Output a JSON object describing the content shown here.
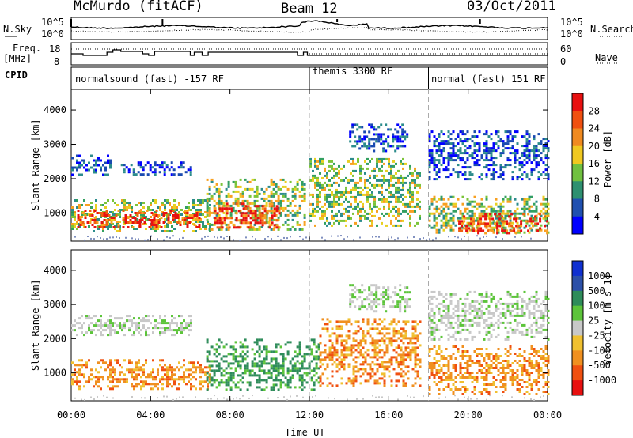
{
  "header": {
    "station": "McMurdo (fitACF)",
    "beam": "Beam 12",
    "date": "03/Oct/2011"
  },
  "side_labels": {
    "nsky": "N.Sky",
    "nsearch": "N.Search",
    "freq": "Freq.",
    "freq_unit": "[MHz]",
    "nave": "Nave",
    "cpid": "CPID",
    "nsky_top": "10^5",
    "nsky_bot": "10^0",
    "freq_top": "18",
    "freq_bot": "8",
    "nave_top": "60",
    "nave_bot": "0",
    "nsearch_top": "10^5",
    "nsearch_bot": "10^0"
  },
  "cpid_segments": [
    {
      "label": "normalsound (fast) -157 RF",
      "start_hour": 0
    },
    {
      "label": "themis 3300 RF",
      "start_hour": 12
    },
    {
      "label": "normal (fast) 151 RF",
      "start_hour": 18
    }
  ],
  "colors": {
    "power_scale": [
      "#0000ff",
      "#1a4ab0",
      "#2c8c8c",
      "#33a060",
      "#7cc43a",
      "#e8d020",
      "#f8a020",
      "#f06010",
      "#e81010"
    ],
    "velocity_scale": [
      "#1030d0",
      "#2c50a8",
      "#2e8c5a",
      "#5cc43a",
      "#c8c8c8",
      "#f0c030",
      "#f09020",
      "#f05010",
      "#e81010"
    ]
  },
  "chart_data": [
    {
      "type": "heatmap",
      "title": "Power",
      "xlabel": "Time UT",
      "ylabel": "Slant Range [km]",
      "x_ticks": [
        "00:00",
        "04:00",
        "08:00",
        "12:00",
        "16:00",
        "20:00",
        "00:00"
      ],
      "y_ticks": [
        "1000",
        "2000",
        "3000",
        "4000"
      ],
      "xlim_hours": [
        0,
        24
      ],
      "ylim_km": [
        180,
        4600
      ],
      "colorbar_label": "Power [dB]",
      "colorbar_ticks": [
        "4",
        "8",
        "12",
        "16",
        "20",
        "24",
        "28"
      ],
      "regions": [
        {
          "t0": 0.0,
          "t1": 7.0,
          "r0": 500,
          "r1": 1400,
          "level": "mid"
        },
        {
          "t0": 0.3,
          "t1": 6.5,
          "r0": 600,
          "r1": 1100,
          "level": "high"
        },
        {
          "t0": 6.8,
          "t1": 11.8,
          "r0": 500,
          "r1": 2000,
          "level": "mid"
        },
        {
          "t0": 7.2,
          "t1": 10.5,
          "r0": 550,
          "r1": 1300,
          "level": "high"
        },
        {
          "t0": 12.0,
          "t1": 17.6,
          "r0": 600,
          "r1": 2600,
          "level": "mid"
        },
        {
          "t0": 18.0,
          "t1": 24.0,
          "r0": 400,
          "r1": 1500,
          "level": "mid"
        },
        {
          "t0": 19.5,
          "t1": 24.0,
          "r0": 400,
          "r1": 1000,
          "level": "high"
        },
        {
          "t0": 0.0,
          "t1": 2.0,
          "r0": 2100,
          "r1": 2700,
          "level": "low"
        },
        {
          "t0": 2.5,
          "t1": 6.0,
          "r0": 2100,
          "r1": 2500,
          "level": "low"
        },
        {
          "t0": 14.0,
          "t1": 17.0,
          "r0": 2800,
          "r1": 3600,
          "level": "low"
        },
        {
          "t0": 18.0,
          "t1": 24.0,
          "r0": 2000,
          "r1": 3400,
          "level": "low"
        }
      ]
    },
    {
      "type": "heatmap",
      "title": "Velocity",
      "xlabel": "Time UT",
      "ylabel": "Slant Range [km]",
      "x_ticks": [
        "00:00",
        "04:00",
        "08:00",
        "12:00",
        "16:00",
        "20:00",
        "00:00"
      ],
      "y_ticks": [
        "1000",
        "2000",
        "3000",
        "4000"
      ],
      "xlim_hours": [
        0,
        24
      ],
      "ylim_km": [
        180,
        4600
      ],
      "colorbar_label": "Velocity [m s-1]",
      "colorbar_ticks": [
        "1000",
        "500",
        "100",
        "25",
        "-25",
        "-100",
        "-500",
        "-1000"
      ],
      "regions": [
        {
          "t0": 0.0,
          "t1": 7.0,
          "r0": 500,
          "r1": 1400,
          "level": "neg"
        },
        {
          "t0": 6.8,
          "t1": 12.5,
          "r0": 500,
          "r1": 2000,
          "level": "pos"
        },
        {
          "t0": 12.5,
          "t1": 17.6,
          "r0": 600,
          "r1": 2600,
          "level": "neg"
        },
        {
          "t0": 18.0,
          "t1": 24.0,
          "r0": 400,
          "r1": 1800,
          "level": "neg"
        },
        {
          "t0": 0.0,
          "t1": 6.0,
          "r0": 2100,
          "r1": 2700,
          "level": "zero"
        },
        {
          "t0": 14.0,
          "t1": 17.0,
          "r0": 2800,
          "r1": 3600,
          "level": "zero"
        },
        {
          "t0": 18.0,
          "t1": 24.0,
          "r0": 2000,
          "r1": 3400,
          "level": "zero"
        }
      ]
    }
  ]
}
